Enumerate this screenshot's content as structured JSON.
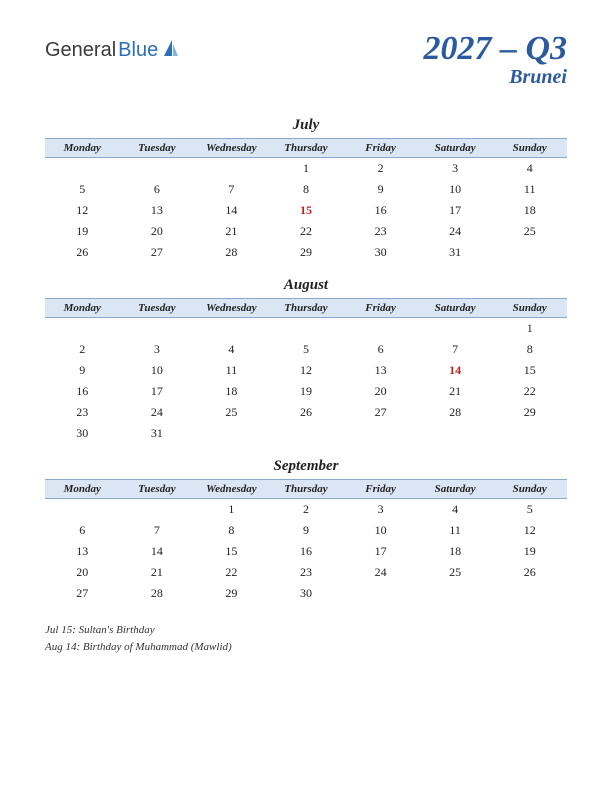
{
  "logo": {
    "text1": "General",
    "text2": "Blue",
    "color1": "#3a3a3a",
    "color2": "#2b6fb5"
  },
  "title": {
    "main": "2027 – Q3",
    "sub": "Brunei",
    "color": "#2b5a9e",
    "main_fontsize": 34,
    "sub_fontsize": 20
  },
  "day_names": [
    "Monday",
    "Tuesday",
    "Wednesday",
    "Thursday",
    "Friday",
    "Saturday",
    "Sunday"
  ],
  "header_bg": "#dbe6f5",
  "header_border": "#8aa8cc",
  "holiday_color": "#c02020",
  "months": [
    {
      "name": "July",
      "weeks": [
        [
          "",
          "",
          "",
          "1",
          "2",
          "3",
          "4"
        ],
        [
          "5",
          "6",
          "7",
          "8",
          "9",
          "10",
          "11"
        ],
        [
          "12",
          "13",
          "14",
          "15",
          "16",
          "17",
          "18"
        ],
        [
          "19",
          "20",
          "21",
          "22",
          "23",
          "24",
          "25"
        ],
        [
          "26",
          "27",
          "28",
          "29",
          "30",
          "31",
          ""
        ]
      ],
      "holidays": [
        "15"
      ]
    },
    {
      "name": "August",
      "weeks": [
        [
          "",
          "",
          "",
          "",
          "",
          "",
          "1"
        ],
        [
          "2",
          "3",
          "4",
          "5",
          "6",
          "7",
          "8"
        ],
        [
          "9",
          "10",
          "11",
          "12",
          "13",
          "14",
          "15"
        ],
        [
          "16",
          "17",
          "18",
          "19",
          "20",
          "21",
          "22"
        ],
        [
          "23",
          "24",
          "25",
          "26",
          "27",
          "28",
          "29"
        ],
        [
          "30",
          "31",
          "",
          "",
          "",
          "",
          ""
        ]
      ],
      "holidays": [
        "14"
      ]
    },
    {
      "name": "September",
      "weeks": [
        [
          "",
          "",
          "1",
          "2",
          "3",
          "4",
          "5"
        ],
        [
          "6",
          "7",
          "8",
          "9",
          "10",
          "11",
          "12"
        ],
        [
          "13",
          "14",
          "15",
          "16",
          "17",
          "18",
          "19"
        ],
        [
          "20",
          "21",
          "22",
          "23",
          "24",
          "25",
          "26"
        ],
        [
          "27",
          "28",
          "29",
          "30",
          "",
          "",
          ""
        ]
      ],
      "holidays": []
    }
  ],
  "notes": [
    "Jul 15: Sultan's Birthday",
    "Aug 14: Birthday of Muhammad (Mawlid)"
  ]
}
